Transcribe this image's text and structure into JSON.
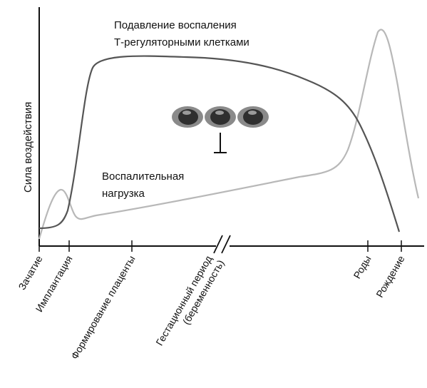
{
  "diagram": {
    "y_axis_label": "Сила воздействия",
    "curve_suppression_label_line1": "Подавление воспаления",
    "curve_suppression_label_line2": "Т-регуляторными клетками",
    "curve_inflammation_label_line1": "Воспалительная",
    "curve_inflammation_label_line2": "нагрузка",
    "x_ticks": [
      {
        "label": "Зачатие"
      },
      {
        "label": "Имплантация"
      },
      {
        "label": "Формирование плаценты"
      },
      {
        "label_line1": "Гестационный период",
        "label_line2": "(беременность)"
      },
      {
        "label": "Роды"
      },
      {
        "label": "Рождение"
      }
    ],
    "colors": {
      "suppression_curve": "#555555",
      "inflammation_curve": "#b8b8b8",
      "axis": "#111111",
      "cell_outer": "#8a8a8a",
      "cell_nucleus": "#2f2f2f"
    },
    "icons": [
      "treg-cell-icon",
      "inhibition-mark-icon",
      "axis-break-icon"
    ]
  }
}
